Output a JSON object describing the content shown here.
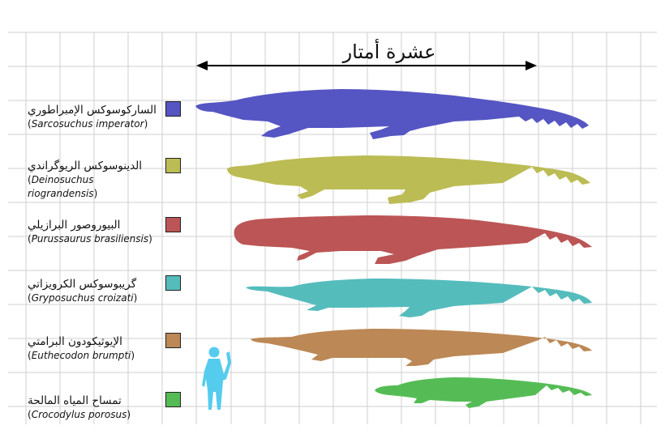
{
  "scale": {
    "label": "عشرة أمتار"
  },
  "species": [
    {
      "arabic": "الساركوسوكس الإمبراطوري",
      "latin": "Sarcosuchus imperator",
      "color": "#5555c3"
    },
    {
      "arabic": "الدينوسوكس الريوگراندي",
      "latin": "Deinosuchus riograndensis",
      "color": "#bcbc55"
    },
    {
      "arabic": "البيوروصور البرازيلي",
      "latin": "Purussaurus brasiliensis",
      "color": "#bc5555"
    },
    {
      "arabic": "گريبوسوكس الكرويزاتي",
      "latin": "Gryposuchus croizati",
      "color": "#55bcbc"
    },
    {
      "arabic": "الإيوثيكودون البرامتي",
      "latin": "Euthecodon brumpti",
      "color": "#bc8855"
    },
    {
      "arabic": "تمساح المياه المالحة",
      "latin": "Crocodylus porosus",
      "color": "#55bc55"
    }
  ],
  "human": {
    "color": "#55ccee"
  },
  "grid": {
    "color": "#cfcfcf"
  }
}
